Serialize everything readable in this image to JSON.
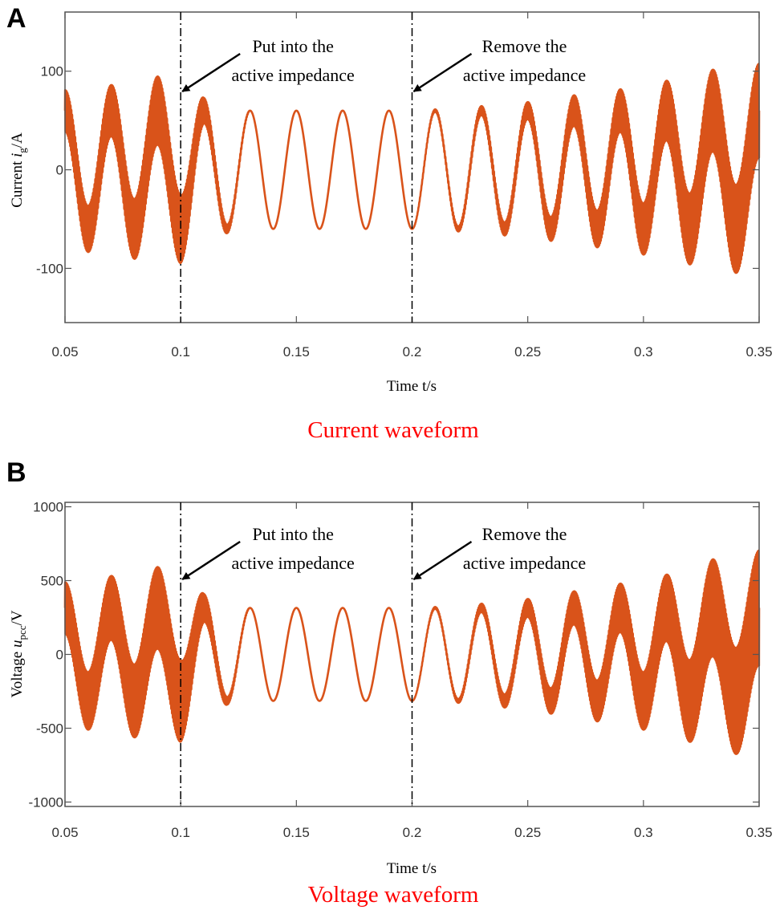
{
  "colors": {
    "waveform": "#d9531a",
    "axis": "#555555",
    "caption": "#ff0000",
    "marker": "#000000"
  },
  "chart_data": [
    {
      "type": "line",
      "panel_label": "A",
      "caption": "Current waveform",
      "xlabel": "Time t/s",
      "ylabel_main": "Current ",
      "ylabel_var": "i",
      "ylabel_sub": "g",
      "ylabel_unit": "/A",
      "xlim": [
        0.05,
        0.35
      ],
      "ylim": [
        -155,
        160
      ],
      "xticks": [
        0.05,
        0.1,
        0.15,
        0.2,
        0.25,
        0.3,
        0.35
      ],
      "xtick_labels": [
        "0.05",
        "0.1",
        "0.15",
        "0.2",
        "0.25",
        "0.3",
        "0.35"
      ],
      "yticks": [
        -100,
        0,
        100
      ],
      "ytick_labels": [
        "-100",
        "0",
        "100"
      ],
      "series": [
        {
          "name": "i_g",
          "fundamental_hz": 50,
          "fundamental_amplitude": 60,
          "harmonic_hz": 3000,
          "harmonic_envelope_t": [
            0.05,
            0.07,
            0.09,
            0.1,
            0.11,
            0.12,
            0.13,
            0.2,
            0.22,
            0.25,
            0.27,
            0.29,
            0.31,
            0.33,
            0.35
          ],
          "harmonic_envelope_amp": [
            24,
            30,
            40,
            40,
            15,
            5,
            0,
            0,
            3,
            10,
            18,
            25,
            35,
            48,
            55
          ]
        }
      ],
      "markers": [
        {
          "x": 0.1,
          "line1": "Put into the",
          "line2": "active impedance"
        },
        {
          "x": 0.2,
          "line1": "Remove the",
          "line2": "active impedance"
        }
      ]
    },
    {
      "type": "line",
      "panel_label": "B",
      "caption": "Voltage waveform",
      "xlabel": "Time t/s",
      "ylabel_main": "Voltage ",
      "ylabel_var": "u",
      "ylabel_sub": "pcc",
      "ylabel_unit": "/V",
      "xlim": [
        0.05,
        0.35
      ],
      "ylim": [
        -1030,
        1030
      ],
      "xticks": [
        0.05,
        0.1,
        0.15,
        0.2,
        0.25,
        0.3,
        0.35
      ],
      "xtick_labels": [
        "0.05",
        "0.1",
        "0.15",
        "0.2",
        "0.25",
        "0.3",
        "0.35"
      ],
      "yticks": [
        -1000,
        -500,
        0,
        500,
        1000
      ],
      "ytick_labels": [
        "-1000",
        "-500",
        "0",
        "500",
        "1000"
      ],
      "series": [
        {
          "name": "u_pcc",
          "fundamental_hz": 50,
          "fundamental_amplitude": 315,
          "harmonic_hz": 3000,
          "harmonic_envelope_t": [
            0.05,
            0.07,
            0.09,
            0.1,
            0.11,
            0.12,
            0.13,
            0.2,
            0.22,
            0.25,
            0.27,
            0.29,
            0.31,
            0.33,
            0.35
          ],
          "harmonic_envelope_amp": [
            200,
            250,
            320,
            320,
            110,
            30,
            0,
            0,
            15,
            70,
            130,
            190,
            260,
            380,
            450
          ]
        }
      ],
      "markers": [
        {
          "x": 0.1,
          "line1": "Put into the",
          "line2": "active  impedance"
        },
        {
          "x": 0.2,
          "line1": "Remove the",
          "line2": "active impedance"
        }
      ]
    }
  ]
}
